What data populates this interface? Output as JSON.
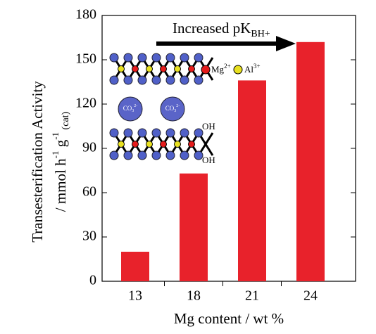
{
  "chart_data": {
    "type": "bar",
    "categories": [
      "13",
      "18",
      "21",
      "24"
    ],
    "values": [
      20,
      73,
      136,
      162
    ],
    "color": "#e8222b",
    "ylim": [
      0,
      180
    ],
    "yticks": [
      0,
      30,
      60,
      90,
      120,
      150,
      180
    ],
    "x_label": "Mg content / wt %",
    "y_label": {
      "line1": "Transesterification Activity",
      "line2": [
        "/ mmol h",
        "-1",
        " g",
        "-1",
        " (cat)"
      ]
    },
    "arrow_label": [
      "Increased pK",
      "BH+"
    ],
    "inset": {
      "mg": "Mg",
      "mg_charge": "2+",
      "al": "Al",
      "al_charge": "3+",
      "oh_top": "OH",
      "oh_bottom": "OH",
      "co3": "CO",
      "co3_sub": "3",
      "co3_charge": "2-"
    }
  }
}
